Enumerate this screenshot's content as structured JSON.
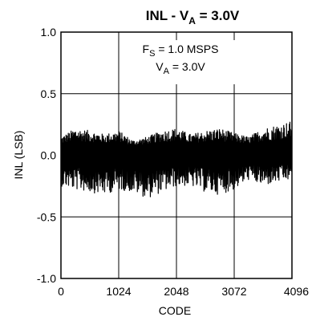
{
  "chart_data": {
    "type": "line",
    "title": {
      "main": "INL - V",
      "sub": "A",
      "suffix": " = 3.0V"
    },
    "xlabel": "CODE",
    "ylabel": "INL (LSB)",
    "xlim": [
      0,
      4096
    ],
    "ylim": [
      -1.0,
      1.0
    ],
    "xticks": [
      0,
      1024,
      2048,
      3072,
      4096
    ],
    "xtick_labels": [
      "0",
      "1024",
      "2048",
      "3072",
      "4096"
    ],
    "yticks": [
      1.0,
      0.5,
      0.0,
      -0.5,
      -1.0
    ],
    "ytick_labels": [
      "1.0",
      "0.5",
      "0.0",
      "-0.5",
      "-1.0"
    ],
    "grid": true,
    "annotations": [
      {
        "main": "F",
        "sub": "S",
        "suffix": " = 1.0 MSPS"
      },
      {
        "main": "V",
        "sub": "A",
        "suffix": " = 3.0V"
      }
    ],
    "series": [
      {
        "color": "#000000",
        "envelope": {
          "x": [
            0,
            256,
            512,
            768,
            1024,
            1280,
            1536,
            1792,
            2048,
            2304,
            2560,
            2816,
            3072,
            3328,
            3584,
            3840,
            4096
          ],
          "upper": [
            0.15,
            0.22,
            0.2,
            0.17,
            0.2,
            0.12,
            0.15,
            0.2,
            0.22,
            0.17,
            0.2,
            0.22,
            0.18,
            0.15,
            0.22,
            0.25,
            0.28
          ],
          "lower": [
            -0.25,
            -0.28,
            -0.3,
            -0.32,
            -0.28,
            -0.3,
            -0.35,
            -0.3,
            -0.25,
            -0.25,
            -0.3,
            -0.32,
            -0.28,
            -0.2,
            -0.25,
            -0.22,
            -0.2
          ]
        }
      }
    ]
  }
}
